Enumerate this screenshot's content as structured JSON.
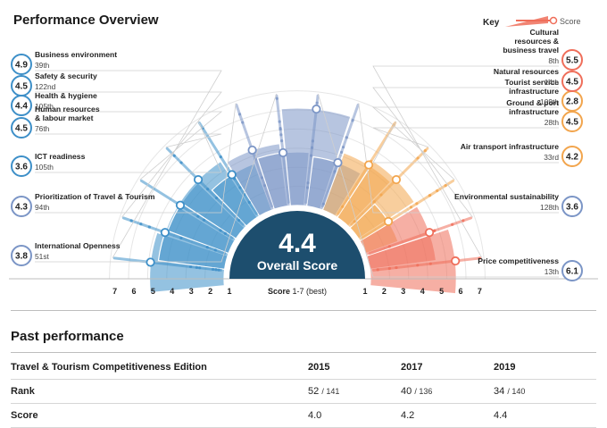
{
  "header": {
    "title": "Performance Overview",
    "key_label": "Key",
    "key_score_label": "Score"
  },
  "chart_data": {
    "type": "radial-bar",
    "title": "Performance Overview",
    "score_scale": [
      1,
      7
    ],
    "overall": {
      "value": "4.4",
      "label": "Overall Score"
    },
    "axis_label": "Score",
    "axis_unit": "1-7 (best)",
    "ticks_left": [
      "7",
      "6",
      "5",
      "4",
      "3",
      "2",
      "1"
    ],
    "ticks_right": [
      "1",
      "2",
      "3",
      "4",
      "5",
      "6",
      "7"
    ],
    "pillars": [
      {
        "name": "Business environment",
        "rank": "39th",
        "score": 4.9,
        "score_text": "4.9",
        "color": "#3d8fc8",
        "side": "left"
      },
      {
        "name": "Safety & security",
        "rank": "122nd",
        "score": 4.5,
        "score_text": "4.5",
        "color": "#3d8fc8",
        "side": "left"
      },
      {
        "name": "Health & hygiene",
        "rank": "105th",
        "score": 4.4,
        "score_text": "4.4",
        "color": "#3d8fc8",
        "side": "left"
      },
      {
        "name": "Human resources & labour market",
        "rank": "76th",
        "score": 4.5,
        "score_text": "4.5",
        "color": "#3d8fc8",
        "side": "left"
      },
      {
        "name": "ICT readiness",
        "rank": "105th",
        "score": 3.6,
        "score_text": "3.6",
        "color": "#3d8fc8",
        "side": "left"
      },
      {
        "name": "Prioritization of Travel & Tourism",
        "rank": "94th",
        "score": 4.3,
        "score_text": "4.3",
        "color": "#7b95c6",
        "side": "left"
      },
      {
        "name": "International Openness",
        "rank": "51st",
        "score": 3.8,
        "score_text": "3.8",
        "color": "#7b95c6",
        "side": "left"
      },
      {
        "name": "Price competitiveness",
        "rank": "13th",
        "score": 6.1,
        "score_text": "6.1",
        "color": "#7b95c6",
        "side": "right"
      },
      {
        "name": "Environmental sustainability",
        "rank": "128th",
        "score": 3.6,
        "score_text": "3.6",
        "color": "#7b95c6",
        "side": "right"
      },
      {
        "name": "Air transport infrastructure",
        "rank": "33rd",
        "score": 4.2,
        "score_text": "4.2",
        "color": "#f2a54d",
        "side": "right"
      },
      {
        "name": "Ground & port infrastructure",
        "rank": "28th",
        "score": 4.5,
        "score_text": "4.5",
        "color": "#f2a54d",
        "side": "right"
      },
      {
        "name": "Tourist service infrastructure",
        "rank": "109th",
        "score": 2.8,
        "score_text": "2.8",
        "color": "#f2a54d",
        "side": "right"
      },
      {
        "name": "Natural resources",
        "rank": "14th",
        "score": 4.5,
        "score_text": "4.5",
        "color": "#ef6e5a",
        "side": "right"
      },
      {
        "name": "Cultural resources & business travel",
        "rank": "8th",
        "score": 5.5,
        "score_text": "5.5",
        "color": "#ef6e5a",
        "side": "right"
      }
    ]
  },
  "past": {
    "title": "Past performance",
    "headers": [
      "Travel & Tourism Competitiveness Edition",
      "2015",
      "2017",
      "2019"
    ],
    "rows": [
      {
        "label": "Rank",
        "cells": [
          {
            "v": "52",
            "d": "/ 141"
          },
          {
            "v": "40",
            "d": "/ 136"
          },
          {
            "v": "34",
            "d": "/ 140"
          }
        ]
      },
      {
        "label": "Score",
        "cells": [
          {
            "v": "4.0",
            "d": ""
          },
          {
            "v": "4.2",
            "d": ""
          },
          {
            "v": "4.4",
            "d": ""
          }
        ]
      }
    ]
  }
}
